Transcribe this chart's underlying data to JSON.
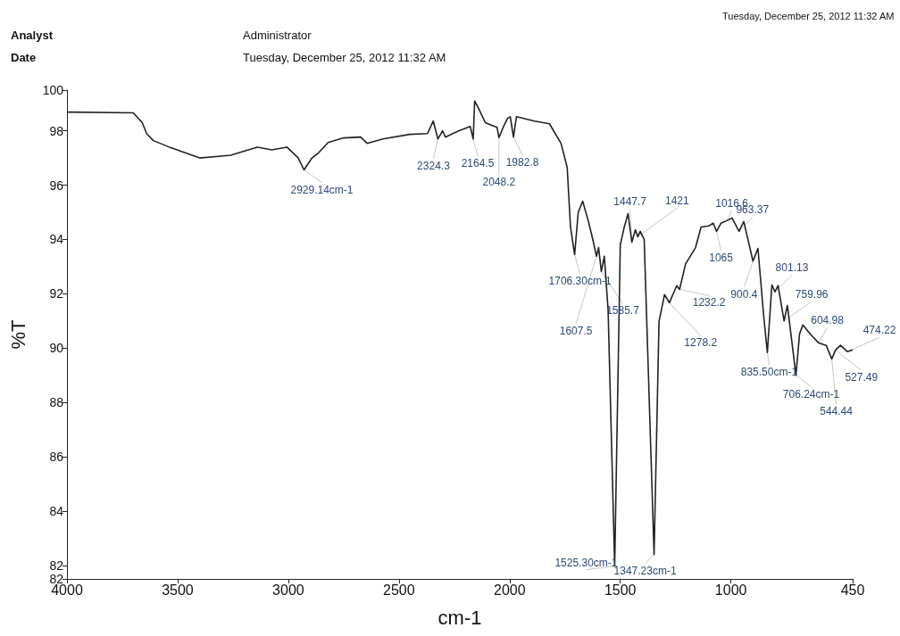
{
  "chart_data": {
    "type": "line",
    "xlabel": "cm-1",
    "ylabel": "%T",
    "xlim": [
      4000,
      450
    ],
    "xticks": [
      4000,
      3500,
      3000,
      2500,
      2000,
      1500,
      1000,
      450
    ],
    "ylim": [
      81.5,
      99.5
    ],
    "yticks": [
      {
        "value": 99.5,
        "label": "100"
      },
      98,
      96,
      94,
      92,
      90,
      88,
      86,
      84,
      82,
      {
        "value": 81.5,
        "label": "82"
      }
    ],
    "marker": "none",
    "line_style": "solid",
    "series": [
      {
        "color": "#222222",
        "x": [
          4000,
          3700,
          3660,
          3640,
          3610,
          3540,
          3400,
          3260,
          3140,
          3075,
          3006,
          2955,
          2929,
          2895,
          2862,
          2820,
          2750,
          2673,
          2644,
          2572,
          2451,
          2371,
          2345,
          2324,
          2303,
          2290,
          2230,
          2178,
          2164.5,
          2158,
          2140,
          2110,
          2081,
          2057,
          2048.2,
          2029,
          2009,
          1997,
          1982.8,
          1969,
          1888,
          1820,
          1768,
          1740,
          1725,
          1706.3,
          1690,
          1670,
          1645,
          1625,
          1607.5,
          1598,
          1585.7,
          1572,
          1555,
          1525.3,
          1500,
          1482,
          1465,
          1447.7,
          1432,
          1421,
          1410,
          1392,
          1347.23,
          1325,
          1300,
          1278.2,
          1245,
          1232.2,
          1205,
          1160,
          1135,
          1100,
          1080,
          1065,
          1045,
          1016.6,
          995,
          963.37,
          942,
          900.4,
          878,
          852,
          835.5,
          815,
          801.13,
          787,
          759.96,
          745,
          706.24,
          690,
          675,
          640,
          604.98,
          570,
          544.44,
          527.49,
          505,
          474.22,
          450
        ],
        "values": [
          98.69,
          98.66,
          98.3,
          97.9,
          97.64,
          97.41,
          97.0,
          97.1,
          97.4,
          97.3,
          97.4,
          97.0,
          96.56,
          96.98,
          97.2,
          97.57,
          97.74,
          97.77,
          97.54,
          97.7,
          97.87,
          97.9,
          98.36,
          97.7,
          98.0,
          97.77,
          98.0,
          98.16,
          97.7,
          99.1,
          98.82,
          98.3,
          98.2,
          98.13,
          97.75,
          98.13,
          98.46,
          98.52,
          97.77,
          98.52,
          98.36,
          98.26,
          97.54,
          96.66,
          94.46,
          93.44,
          95.0,
          95.41,
          94.7,
          94.03,
          93.38,
          93.7,
          92.82,
          93.38,
          91.4,
          81.97,
          93.8,
          94.46,
          94.95,
          93.9,
          94.36,
          94.1,
          94.3,
          94.0,
          82.4,
          90.98,
          91.97,
          91.67,
          92.3,
          92.16,
          93.1,
          93.7,
          94.46,
          94.5,
          94.6,
          94.3,
          94.6,
          94.7,
          94.79,
          94.3,
          94.66,
          93.2,
          93.67,
          91.18,
          89.84,
          92.33,
          92.07,
          92.3,
          91.0,
          91.57,
          89.0,
          90.52,
          90.85,
          90.5,
          90.2,
          90.1,
          89.6,
          89.93,
          90.1,
          89.87,
          89.93
        ]
      }
    ],
    "annotations": [
      "Analyst",
      "Administrator",
      "Date",
      "Tuesday, December 25, 2012 11:32 AM",
      "Tuesday, December 25, 2012 11:32 AM",
      {
        "text": "2929.14cm-1",
        "x": 2929,
        "y": 96.56
      },
      {
        "text": "2324.3",
        "x": 2324,
        "y": 97.7
      },
      {
        "text": "2164.5",
        "x": 2164.5,
        "y": 97.7
      },
      {
        "text": "2048.2",
        "x": 2048.2,
        "y": 97.75
      },
      {
        "text": "1982.8",
        "x": 1982.8,
        "y": 97.77
      },
      {
        "text": "1706.30cm-1",
        "x": 1706.3,
        "y": 93.44
      },
      {
        "text": "1607.5",
        "x": 1607.5,
        "y": 93.38
      },
      {
        "text": "1585.7",
        "x": 1585.7,
        "y": 92.82
      },
      {
        "text": "1525.30cm-1",
        "x": 1525.3,
        "y": 81.97
      },
      {
        "text": "1347.23cm-1",
        "x": 1347.23,
        "y": 82.4
      },
      {
        "text": "1447.7",
        "x": 1447.7,
        "y": 93.9
      },
      {
        "text": "1421",
        "x": 1421,
        "y": 94.1
      },
      {
        "text": "1278.2",
        "x": 1278.2,
        "y": 91.67
      },
      {
        "text": "1232.2",
        "x": 1232.2,
        "y": 92.16
      },
      {
        "text": "1065",
        "x": 1065,
        "y": 94.3
      },
      {
        "text": "1016.6",
        "x": 1016.6,
        "y": 94.7
      },
      {
        "text": "963.37",
        "x": 963.37,
        "y": 94.3
      },
      {
        "text": "900.4",
        "x": 900.4,
        "y": 93.2
      },
      {
        "text": "835.50cm-1",
        "x": 835.5,
        "y": 89.84
      },
      {
        "text": "801.13",
        "x": 801.13,
        "y": 92.07
      },
      {
        "text": "759.96",
        "x": 759.96,
        "y": 91.0
      },
      {
        "text": "706.24cm-1",
        "x": 706.24,
        "y": 89.0
      },
      {
        "text": "604.98",
        "x": 604.98,
        "y": 90.2
      },
      {
        "text": "544.44",
        "x": 544.44,
        "y": 89.6
      },
      {
        "text": "527.49",
        "x": 527.49,
        "y": 89.93
      },
      {
        "text": "474.22",
        "x": 474.22,
        "y": 89.87
      }
    ]
  }
}
